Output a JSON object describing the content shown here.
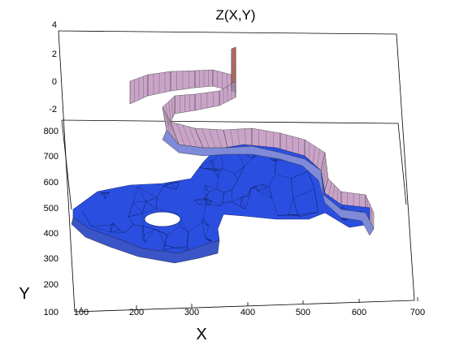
{
  "chart_data": {
    "type": "3d-surface",
    "title": "Z(X,Y)",
    "xlabel": "X",
    "ylabel": "Y",
    "xticks": [
      100,
      200,
      300,
      400,
      500,
      600,
      700
    ],
    "yticks": [
      100,
      200,
      300,
      400,
      500,
      600,
      700,
      800
    ],
    "zticks": [
      -2,
      0,
      2,
      4
    ],
    "xlim": [
      100,
      700
    ],
    "ylim": [
      100,
      800
    ],
    "zlim": [
      -3,
      4
    ],
    "grid": false,
    "colormap": [
      "#2a4fe0",
      "#7f8ad8",
      "#c9a4c8",
      "#e07a70"
    ]
  }
}
